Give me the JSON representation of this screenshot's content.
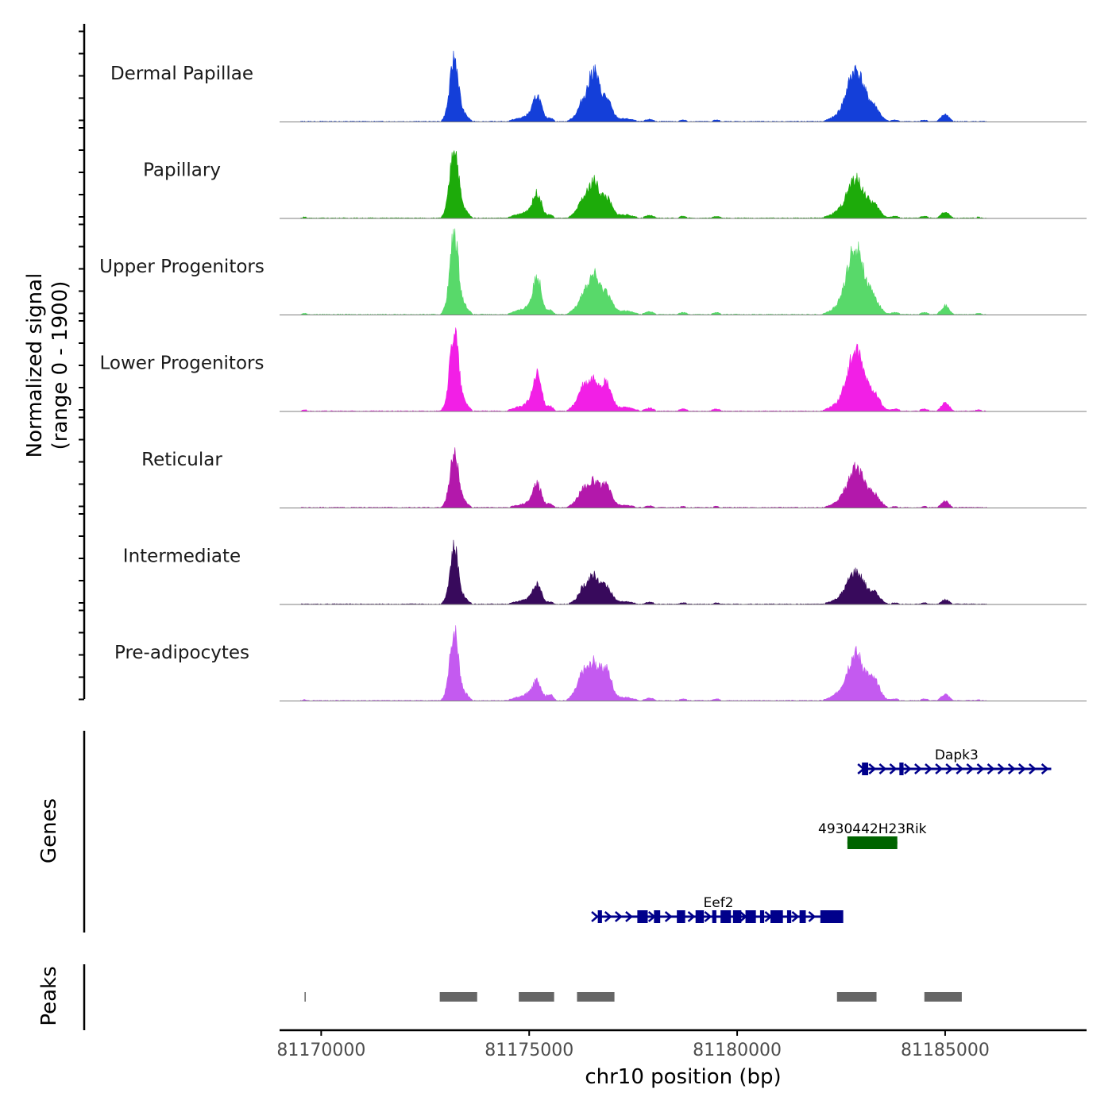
{
  "chart_data": {
    "type": "area",
    "title": "",
    "region": {
      "chromosome": "chr10",
      "start": 81169000,
      "end": 81188400
    },
    "xlabel": "chr10 position (bp)",
    "x_ticks": [
      {
        "value": 81170000,
        "label": "81170000"
      },
      {
        "value": 81175000,
        "label": "81175000"
      },
      {
        "value": 81180000,
        "label": "81180000"
      },
      {
        "value": 81185000,
        "label": "81185000"
      }
    ],
    "coverage": {
      "ylabel_line1": "Normalized signal",
      "ylabel_line2": "(range 0 - 1900)",
      "ylim": [
        0,
        1900
      ],
      "peak_profile": [
        {
          "center": 81169600,
          "width": 150,
          "rel": 0.02
        },
        {
          "center": 81173000,
          "width": 100,
          "rel": 0.05
        },
        {
          "center": 81173200,
          "width": 140,
          "rel": 0.4
        },
        {
          "center": 81173450,
          "width": 140,
          "rel": 0.1
        },
        {
          "center": 81174750,
          "width": 250,
          "rel": 0.05
        },
        {
          "center": 81175000,
          "width": 160,
          "rel": 0.08
        },
        {
          "center": 81175200,
          "width": 140,
          "rel": 0.55
        },
        {
          "center": 81175500,
          "width": 110,
          "rel": 0.14
        },
        {
          "center": 81176100,
          "width": 160,
          "rel": 0.14
        },
        {
          "center": 81176300,
          "width": 150,
          "rel": 0.2
        },
        {
          "center": 81176550,
          "width": 170,
          "rel": 0.85
        },
        {
          "center": 81176850,
          "width": 180,
          "rel": 0.25
        },
        {
          "center": 81177300,
          "width": 300,
          "rel": 0.05
        },
        {
          "center": 81177900,
          "width": 150,
          "rel": 0.04
        },
        {
          "center": 81178700,
          "width": 150,
          "rel": 0.03
        },
        {
          "center": 81179500,
          "width": 150,
          "rel": 0.03
        },
        {
          "center": 81182400,
          "width": 300,
          "rel": 0.06
        },
        {
          "center": 81182850,
          "width": 290,
          "rel": 1.0
        },
        {
          "center": 81183300,
          "width": 200,
          "rel": 0.14
        },
        {
          "center": 81183800,
          "width": 150,
          "rel": 0.03
        },
        {
          "center": 81184500,
          "width": 150,
          "rel": 0.03
        },
        {
          "center": 81185000,
          "width": 140,
          "rel": 0.07
        },
        {
          "center": 81185800,
          "width": 150,
          "rel": 0.02
        }
      ],
      "tracks": [
        {
          "name": "Dermal Papillae",
          "color": "#143fd9",
          "peak_values": [
            1420,
            560,
            1100,
            1150,
            1200,
            1000,
            320,
            180,
            120
          ]
        },
        {
          "name": "Papillary",
          "color": "#1dab0a",
          "peak_values": [
            1620,
            540,
            800,
            860,
            1000,
            900,
            280,
            160,
            110
          ]
        },
        {
          "name": "Upper Progenitors",
          "color": "#58d96a",
          "peak_values": [
            1810,
            820,
            860,
            1500,
            1460,
            1000,
            380,
            240,
            140
          ]
        },
        {
          "name": "Lower Progenitors",
          "color": "#f21fe6",
          "peak_values": [
            1820,
            780,
            660,
            1300,
            1380,
            1200,
            420,
            300,
            180
          ]
        },
        {
          "name": "Reticular",
          "color": "#b318ab",
          "peak_values": [
            1200,
            520,
            560,
            880,
            1050,
            950,
            330,
            220,
            140
          ]
        },
        {
          "name": "Intermediate",
          "color": "#380a5c",
          "peak_values": [
            1250,
            430,
            620,
            700,
            760,
            800,
            200,
            140,
            90
          ]
        },
        {
          "name": "Pre-adipocytes",
          "color": "#c45af0",
          "peak_values": [
            1580,
            430,
            800,
            1060,
            1080,
            1400,
            520,
            380,
            260
          ]
        }
      ]
    },
    "genes": {
      "ylabel": "Genes",
      "items": [
        {
          "name": "Dapk3",
          "strand": "+",
          "start": 81183000,
          "end": 81187550,
          "color": "#00008b",
          "exons": [
            [
              81183000,
              81183150
            ],
            [
              81183900,
              81184000
            ]
          ],
          "arrows": [
            81183250,
            81183500,
            81183750,
            81184100,
            81184350,
            81184600,
            81184850,
            81185100,
            81185350,
            81185600,
            81185850,
            81186100,
            81186350,
            81186600,
            81186850,
            81187100,
            81187400
          ]
        },
        {
          "name": "4930442H23Rik",
          "strand": "",
          "start": 81182650,
          "end": 81183850,
          "color": "#006400",
          "exons": [
            [
              81182650,
              81183850
            ]
          ],
          "arrows": []
        },
        {
          "name": "Eef2",
          "strand": "+",
          "start": 81176600,
          "end": 81182500,
          "color": "#00008b",
          "exons": [
            [
              81176650,
              81176750
            ],
            [
              81177600,
              81177850
            ],
            [
              81178000,
              81178150
            ],
            [
              81178550,
              81178750
            ],
            [
              81179000,
              81179200
            ],
            [
              81179400,
              81179500
            ],
            [
              81179600,
              81179850
            ],
            [
              81179900,
              81180100
            ],
            [
              81180200,
              81180450
            ],
            [
              81180550,
              81180650
            ],
            [
              81180800,
              81181100
            ],
            [
              81181200,
              81181300
            ],
            [
              81181500,
              81181650
            ],
            [
              81182000,
              81182550
            ]
          ],
          "arrows": [
            81176900,
            81177150,
            81177400,
            81177950,
            81178350,
            81178900,
            81179300,
            81180150,
            81180750,
            81181400,
            81181800
          ]
        }
      ]
    },
    "peaks": {
      "ylabel": "Peaks",
      "color": "#666666",
      "intervals": [
        [
          81169600,
          81169620
        ],
        [
          81172850,
          81173750
        ],
        [
          81174750,
          81175600
        ],
        [
          81176150,
          81177050
        ],
        [
          81182400,
          81183350
        ],
        [
          81184500,
          81185400
        ]
      ]
    }
  }
}
